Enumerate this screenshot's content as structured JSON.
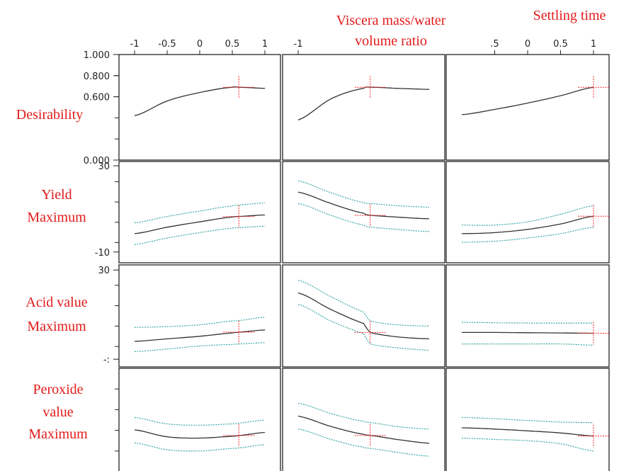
{
  "chart_data": {
    "type": "line",
    "title": "",
    "columns": [
      {
        "label_lines": [],
        "tick_labels": [
          "-1",
          "-0.5",
          "0",
          "0.5",
          "1"
        ],
        "tick_values": [
          -1,
          -0.5,
          0,
          0.5,
          1
        ]
      },
      {
        "label_lines": [
          "Viscera mass/water",
          "volume ratio"
        ],
        "tick_labels": [
          "-1"
        ],
        "tick_values": [
          -1
        ]
      },
      {
        "label_lines": [
          "Settling time"
        ],
        "tick_labels": [
          ".5",
          "0",
          "0.5",
          "1"
        ],
        "tick_values": [
          -0.5,
          0,
          0.5,
          1
        ]
      }
    ],
    "rows": [
      {
        "label_lines": [
          "Desirability"
        ],
        "ylim": [
          0,
          1
        ],
        "tick_labels": [
          "1.000",
          "0.800",
          "0.600",
          "0.000"
        ],
        "tick_values": [
          1.0,
          0.8,
          0.6,
          0.0
        ],
        "has_ci": false
      },
      {
        "label_lines": [
          "Yield",
          "Maximum"
        ],
        "ylim": [
          -15,
          32
        ],
        "tick_labels": [
          "30",
          "-10"
        ],
        "tick_values": [
          30,
          -10
        ],
        "has_ci": true
      },
      {
        "label_lines": [
          "Acid value",
          "Maximum"
        ],
        "ylim": [
          -8,
          32
        ],
        "tick_labels": [
          "30",
          "-:"
        ],
        "tick_values": [
          30,
          -5
        ],
        "has_ci": true
      },
      {
        "label_lines": [
          "Peroxide",
          "value",
          "Maximum"
        ],
        "ylim": [
          -10,
          30
        ],
        "tick_labels": [],
        "tick_values": [],
        "has_ci": true
      }
    ],
    "current_settings": [
      0.6,
      0.1,
      1.0
    ],
    "series": [
      {
        "row": 0,
        "col": 0,
        "x": [
          -1,
          -0.5,
          0,
          0.5,
          0.6,
          1
        ],
        "y": [
          0.42,
          0.56,
          0.64,
          0.69,
          0.69,
          0.68
        ]
      },
      {
        "row": 0,
        "col": 1,
        "x": [
          -1,
          -0.5,
          0,
          0.1,
          0.5,
          1
        ],
        "y": [
          0.38,
          0.58,
          0.68,
          0.69,
          0.68,
          0.67
        ]
      },
      {
        "row": 0,
        "col": 2,
        "x": [
          -1,
          -0.5,
          0,
          0.5,
          1
        ],
        "y": [
          0.43,
          0.48,
          0.54,
          0.61,
          0.69
        ]
      },
      {
        "row": 1,
        "col": 0,
        "x": [
          -1,
          -0.5,
          0,
          0.5,
          0.6,
          1
        ],
        "y": [
          -1.5,
          1.5,
          4.0,
          6.2,
          6.5,
          7.2
        ],
        "lower": [
          -6.5,
          -3.5,
          -1.0,
          1.0,
          1.3,
          2.0
        ],
        "upper": [
          3.5,
          6.5,
          9.0,
          11.4,
          11.8,
          12.8
        ]
      },
      {
        "row": 1,
        "col": 1,
        "x": [
          -1,
          -0.5,
          0,
          0.1,
          0.5,
          1
        ],
        "y": [
          17.8,
          12.5,
          8.0,
          7.0,
          6.2,
          5.4
        ],
        "lower": [
          12.5,
          7.0,
          2.5,
          1.5,
          0.5,
          -0.5
        ],
        "upper": [
          23.0,
          17.5,
          13.0,
          12.5,
          11.5,
          10.8
        ]
      },
      {
        "row": 1,
        "col": 2,
        "x": [
          -1,
          -0.5,
          0,
          0.5,
          1
        ],
        "y": [
          -1.5,
          -1.0,
          0.5,
          3.0,
          6.6
        ],
        "lower": [
          -5.5,
          -5.0,
          -3.5,
          -1.5,
          1.5
        ],
        "upper": [
          2.5,
          2.5,
          4.0,
          7.5,
          11.5
        ]
      },
      {
        "row": 2,
        "col": 0,
        "x": [
          -1,
          -0.5,
          0,
          0.5,
          0.6,
          1
        ],
        "y": [
          2.0,
          3.0,
          4.0,
          5.3,
          5.6,
          6.5
        ],
        "lower": [
          -2.0,
          -1.0,
          0.2,
          0.8,
          1.0,
          1.5
        ],
        "upper": [
          7.5,
          7.8,
          8.5,
          10.0,
          10.2,
          11.5
        ]
      },
      {
        "row": 2,
        "col": 1,
        "x": [
          -1,
          -0.5,
          0,
          0.1,
          0.5,
          1
        ],
        "y": [
          21.0,
          14.5,
          9.0,
          5.5,
          3.8,
          3.0
        ],
        "lower": [
          16.5,
          10.0,
          5.0,
          1.0,
          -0.5,
          -1.5
        ],
        "upper": [
          26.0,
          19.5,
          13.5,
          10.0,
          8.5,
          8.0
        ]
      },
      {
        "row": 2,
        "col": 2,
        "x": [
          -1,
          -0.5,
          0,
          0.5,
          1
        ],
        "y": [
          5.5,
          5.5,
          5.4,
          5.3,
          5.2
        ],
        "lower": [
          1.0,
          1.0,
          1.0,
          1.0,
          0.5
        ],
        "upper": [
          9.5,
          9.3,
          9.2,
          9.2,
          9.2
        ]
      },
      {
        "row": 3,
        "col": 0,
        "x": [
          -1,
          -0.5,
          0,
          0.5,
          0.6,
          1
        ],
        "y": [
          6.2,
          3.5,
          3.0,
          3.7,
          4.0,
          5.2
        ],
        "lower": [
          1.2,
          -1.5,
          -2.0,
          -1.0,
          -0.8,
          0.5
        ],
        "upper": [
          11.0,
          8.5,
          8.0,
          8.5,
          8.8,
          10.0
        ]
      },
      {
        "row": 3,
        "col": 1,
        "x": [
          -1,
          -0.5,
          0,
          0.1,
          0.5,
          1
        ],
        "y": [
          11.5,
          7.5,
          4.5,
          4.0,
          2.5,
          1.0
        ],
        "lower": [
          6.5,
          2.5,
          -0.5,
          -1.0,
          -2.5,
          -4.0
        ],
        "upper": [
          16.5,
          12.5,
          9.5,
          9.0,
          7.5,
          6.5
        ]
      },
      {
        "row": 3,
        "col": 2,
        "x": [
          -1,
          -0.5,
          0,
          0.5,
          1
        ],
        "y": [
          7.0,
          6.5,
          5.8,
          5.0,
          3.8
        ],
        "lower": [
          3.0,
          2.5,
          2.0,
          0.8,
          -2.0
        ],
        "upper": [
          11.0,
          10.5,
          9.8,
          9.2,
          9.0
        ]
      }
    ],
    "colors": {
      "mean": "#333333",
      "ci": "#3aa6a6",
      "marker": "#ff2222",
      "text": "#e31b1b"
    }
  }
}
